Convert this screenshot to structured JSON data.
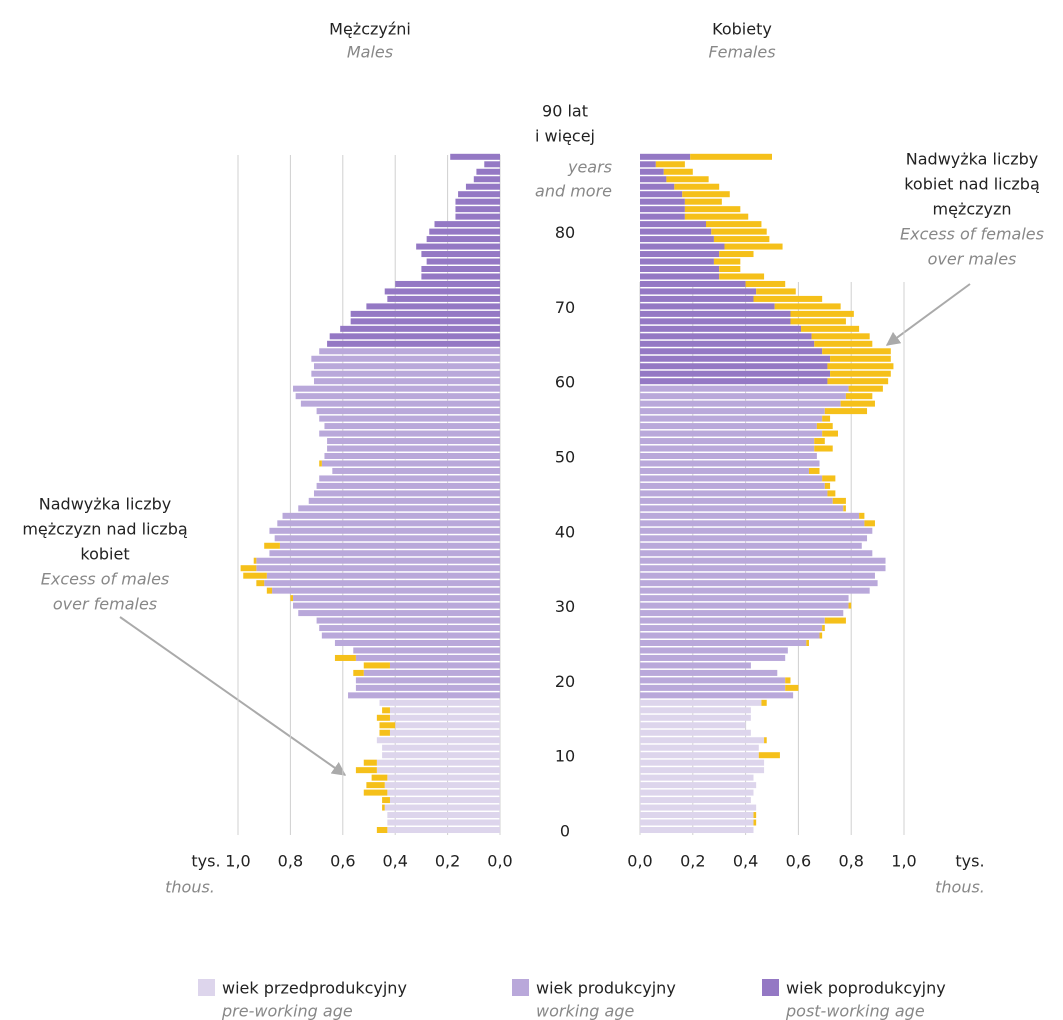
{
  "chart_data": {
    "type": "pyramid",
    "left": {
      "title": "Mężczyźni",
      "subtitle": "Males",
      "series": [
        {
          "values": [
            0.47,
            0.43,
            0.43,
            0.45,
            0.45,
            0.52,
            0.51,
            0.49,
            0.55,
            0.52,
            0.45,
            0.45,
            0.47,
            0.46,
            0.46,
            0.47,
            0.45,
            0.46,
            null,
            null,
            null,
            null,
            null,
            null,
            null,
            null,
            null,
            null,
            null,
            null,
            null,
            null,
            null,
            null,
            null,
            null,
            null,
            null,
            null,
            null,
            null,
            null,
            null,
            null,
            null,
            null,
            null,
            null,
            null,
            null,
            null,
            null,
            null,
            null,
            null,
            null,
            null,
            null,
            null,
            null,
            null,
            null,
            null,
            null,
            null,
            null,
            null,
            null,
            null,
            null,
            null,
            null,
            null,
            null,
            null,
            null,
            null,
            null,
            null,
            null,
            null,
            null,
            null,
            null,
            null,
            null,
            null,
            null,
            null,
            null,
            null
          ]
        },
        {
          "values": [
            null,
            null,
            null,
            null,
            null,
            null,
            null,
            null,
            null,
            null,
            null,
            null,
            null,
            null,
            null,
            null,
            null,
            null,
            0.58,
            0.55,
            0.55,
            0.56,
            0.52,
            0.63,
            0.56,
            0.63,
            0.68,
            0.69,
            0.7,
            0.77,
            0.79,
            0.8,
            0.89,
            0.93,
            0.98,
            0.99,
            0.94,
            0.88,
            0.9,
            0.86,
            0.88,
            0.85,
            0.83,
            0.77,
            0.73,
            0.71,
            0.7,
            0.69,
            0.64,
            0.69,
            0.67,
            0.66,
            0.66,
            0.69,
            0.67,
            0.69,
            0.7,
            0.76,
            0.78,
            0.79,
            0.71,
            0.72,
            0.71,
            0.72,
            0.69,
            null,
            null,
            null,
            null,
            null,
            null,
            null,
            null,
            null,
            null,
            null,
            null,
            null,
            null,
            null,
            null,
            null,
            null,
            null,
            null,
            null,
            null,
            null,
            null,
            null,
            null
          ]
        },
        {
          "values": [
            null,
            null,
            null,
            null,
            null,
            null,
            null,
            null,
            null,
            null,
            null,
            null,
            null,
            null,
            null,
            null,
            null,
            null,
            null,
            null,
            null,
            null,
            null,
            null,
            null,
            null,
            null,
            null,
            null,
            null,
            null,
            null,
            null,
            null,
            null,
            null,
            null,
            null,
            null,
            null,
            null,
            null,
            null,
            null,
            null,
            null,
            null,
            null,
            null,
            null,
            null,
            null,
            null,
            null,
            null,
            null,
            null,
            null,
            null,
            null,
            null,
            null,
            null,
            null,
            null,
            0.66,
            0.65,
            0.61,
            0.57,
            0.57,
            0.51,
            0.43,
            0.44,
            0.4,
            0.3,
            0.3,
            0.28,
            0.3,
            0.32,
            0.28,
            0.27,
            0.25,
            0.17,
            0.17,
            0.17,
            0.16,
            0.13,
            0.1,
            0.09,
            0.06,
            0.19
          ]
        }
      ]
    },
    "right": {
      "title": "Kobiety",
      "subtitle": "Females",
      "series": [
        {
          "values": [
            0.43,
            0.44,
            0.44,
            0.44,
            0.42,
            0.43,
            0.44,
            0.43,
            0.47,
            0.47,
            0.53,
            0.45,
            0.48,
            0.42,
            0.4,
            0.42,
            0.42,
            0.48,
            null,
            null,
            null,
            null,
            null,
            null,
            null,
            null,
            null,
            null,
            null,
            null,
            null,
            null,
            null,
            null,
            null,
            null,
            null,
            null,
            null,
            null,
            null,
            null,
            null,
            null,
            null,
            null,
            null,
            null,
            null,
            null,
            null,
            null,
            null,
            null,
            null,
            null,
            null,
            null,
            null,
            null,
            null,
            null,
            null,
            null,
            null,
            null,
            null,
            null,
            null,
            null,
            null,
            null,
            null,
            null,
            null,
            null,
            null,
            null,
            null,
            null,
            null,
            null,
            null,
            null,
            null,
            null,
            null,
            null,
            null,
            null,
            null
          ]
        },
        {
          "values": [
            null,
            null,
            null,
            null,
            null,
            null,
            null,
            null,
            null,
            null,
            null,
            null,
            null,
            null,
            null,
            null,
            null,
            null,
            0.58,
            0.6,
            0.57,
            0.52,
            0.42,
            0.55,
            0.56,
            0.64,
            0.69,
            0.7,
            0.78,
            0.77,
            0.8,
            0.79,
            0.87,
            0.9,
            0.89,
            0.93,
            0.93,
            0.88,
            0.84,
            0.86,
            0.88,
            0.89,
            0.85,
            0.78,
            0.78,
            0.74,
            0.72,
            0.74,
            0.68,
            0.68,
            0.67,
            0.73,
            0.7,
            0.75,
            0.73,
            0.72,
            0.86,
            0.89,
            0.88,
            0.92,
            null,
            null,
            null,
            null,
            null,
            null,
            null,
            null,
            null,
            null,
            null,
            null,
            null,
            null,
            null,
            null,
            null,
            null,
            null,
            null,
            null,
            null,
            null,
            null,
            null,
            null,
            null,
            null,
            null,
            null,
            null
          ]
        },
        {
          "values": [
            null,
            null,
            null,
            null,
            null,
            null,
            null,
            null,
            null,
            null,
            null,
            null,
            null,
            null,
            null,
            null,
            null,
            null,
            null,
            null,
            null,
            null,
            null,
            null,
            null,
            null,
            null,
            null,
            null,
            null,
            null,
            null,
            null,
            null,
            null,
            null,
            null,
            null,
            null,
            null,
            null,
            null,
            null,
            null,
            null,
            null,
            null,
            null,
            null,
            null,
            null,
            null,
            null,
            null,
            null,
            null,
            null,
            null,
            null,
            null,
            0.94,
            0.95,
            0.96,
            0.95,
            0.95,
            0.88,
            0.87,
            0.83,
            0.78,
            0.81,
            0.76,
            0.69,
            0.59,
            0.55,
            0.47,
            0.38,
            0.38,
            0.43,
            0.54,
            0.49,
            0.48,
            0.46,
            0.41,
            0.38,
            0.31,
            0.34,
            0.3,
            0.26,
            0.2,
            0.17,
            0.5
          ]
        }
      ]
    },
    "categories": [
      0,
      null,
      null,
      null,
      null,
      null,
      null,
      null,
      null,
      null,
      10,
      null,
      null,
      null,
      null,
      null,
      null,
      null,
      null,
      null,
      20,
      null,
      null,
      null,
      null,
      null,
      null,
      null,
      null,
      null,
      30,
      null,
      null,
      null,
      null,
      null,
      null,
      null,
      null,
      null,
      40,
      null,
      null,
      null,
      null,
      null,
      null,
      null,
      null,
      null,
      50,
      null,
      null,
      null,
      null,
      null,
      null,
      null,
      null,
      null,
      60,
      null,
      null,
      null,
      null,
      null,
      null,
      null,
      null,
      null,
      70,
      null,
      null,
      null,
      null,
      null,
      null,
      null,
      null,
      null,
      80,
      null,
      null,
      null,
      null,
      null,
      null,
      null,
      null,
      null,
      null
    ],
    "oldest_label": [
      "90 lat",
      "i więcej"
    ],
    "oldest_label_en": [
      "years",
      "and more"
    ],
    "legend": [
      {
        "name": "wiek przedprodukcyjny",
        "name_en": "pre-working age",
        "color": "#ddd5ec"
      },
      {
        "name": "wiek produkcyjny",
        "name_en": "working age",
        "color": "#b9a8da"
      },
      {
        "name": "wiek poprodukcyjny",
        "name_en": "post-working age",
        "color": "#9478c4"
      }
    ],
    "excess_color": "#f5c01a",
    "xlim": [
      0,
      1.0
    ],
    "xticks": [
      {
        "value": 0,
        "label": "0,0"
      },
      {
        "value": 0.2,
        "label": "0,2"
      },
      {
        "value": 0.4,
        "label": "0,4"
      },
      {
        "value": 0.6,
        "label": "0,6"
      },
      {
        "value": 0.8,
        "label": "0,8"
      },
      {
        "value": 1.0,
        "label": "1,0"
      }
    ],
    "unit": "tys.",
    "unit_en": "thous.",
    "grid": true,
    "annotations": [
      {
        "lines": [
          "Nadwyżka liczby",
          "mężczyzn nad liczbą",
          "kobiet"
        ],
        "lines_en": [
          "Excess of males",
          "over females"
        ]
      },
      {
        "lines": [
          "Nadwyżka liczby",
          "kobiet nad liczbą",
          "mężczyzn"
        ],
        "lines_en": [
          "Excess of females",
          "over males"
        ]
      }
    ]
  }
}
